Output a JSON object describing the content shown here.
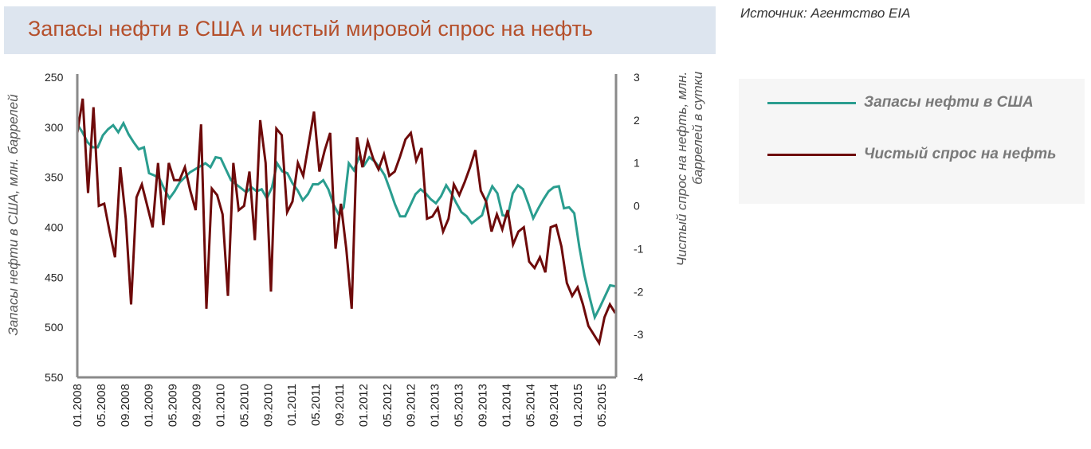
{
  "title": "Запасы нефти в США и чистый мировой спрос на нефть",
  "source": "Источник: Агентство EIA",
  "legend": [
    {
      "label": "Запасы нефти в США",
      "color": "#2a9d8f"
    },
    {
      "label": "Чистый спрос на нефть",
      "color": "#6e0a0a"
    }
  ],
  "axes": {
    "left_label": "Запасы нефти в США, млн. баррелей",
    "right_label_line1": "Чистый спрос на нефть, млн.",
    "right_label_line2": "баррелей в сутки",
    "left_ticks": [
      "250",
      "300",
      "350",
      "400",
      "450",
      "500",
      "550"
    ],
    "right_ticks": [
      "3",
      "2",
      "1",
      "0",
      "-1",
      "-2",
      "-3",
      "-4"
    ],
    "x_ticks": [
      "01.2008",
      "05.2008",
      "09.2008",
      "01.2009",
      "05.2009",
      "09.2009",
      "01.2010",
      "05.2010",
      "09.2010",
      "01.2011",
      "05.2011",
      "09.2011",
      "01.2012",
      "05.2012",
      "09.2012",
      "01.2013",
      "05.2013",
      "09.2013",
      "01.2014",
      "05.2014",
      "09.2014",
      "01.2015",
      "05.2015"
    ]
  },
  "chart_data": {
    "type": "line",
    "title": "Запасы нефти в США и чистый мировой спрос на нефть",
    "xlabel": "",
    "ylabel": "Запасы нефти в США, млн. баррелей",
    "y2label": "Чистый спрос на нефть, млн. баррелей в сутки",
    "x_start": "01.2008",
    "x_frequency": "monthly",
    "categories": [
      "01.2008",
      "05.2008",
      "09.2008",
      "01.2009",
      "05.2009",
      "09.2009",
      "01.2010",
      "05.2010",
      "09.2010",
      "01.2011",
      "05.2011",
      "09.2011",
      "01.2012",
      "05.2012",
      "09.2012",
      "01.2013",
      "05.2013",
      "09.2013",
      "01.2014",
      "05.2014",
      "09.2014",
      "01.2015",
      "05.2015"
    ],
    "ylim": [
      550,
      250
    ],
    "y_inverted": true,
    "y2lim": [
      -4,
      3
    ],
    "grid": false,
    "legend_position": "right",
    "series": [
      {
        "name": "Запасы нефти в США",
        "axis": "left",
        "color": "#2a9d8f",
        "values": [
          297,
          305,
          315,
          320,
          320,
          308,
          302,
          298,
          305,
          296,
          307,
          315,
          322,
          320,
          346,
          348,
          351,
          362,
          371,
          364,
          355,
          350,
          345,
          342,
          339,
          336,
          340,
          330,
          331,
          342,
          353,
          357,
          361,
          365,
          360,
          364,
          362,
          371,
          360,
          336,
          344,
          346,
          356,
          363,
          373,
          367,
          357,
          357,
          353,
          362,
          377,
          387,
          380,
          336,
          343,
          330,
          338,
          330,
          334,
          340,
          348,
          362,
          377,
          389,
          389,
          378,
          367,
          362,
          366,
          372,
          376,
          369,
          358,
          366,
          376,
          385,
          389,
          396,
          392,
          388,
          371,
          359,
          366,
          388,
          389,
          366,
          358,
          362,
          376,
          391,
          381,
          372,
          364,
          360,
          359,
          381,
          380,
          386,
          420,
          448,
          470,
          490,
          480,
          469,
          458,
          459
        ]
      },
      {
        "name": "Чистый спрос на нефть",
        "axis": "right",
        "color": "#6e0a0a",
        "values": [
          1.7,
          2.5,
          0.3,
          2.3,
          0.0,
          0.05,
          -0.6,
          -1.2,
          0.9,
          -0.3,
          -2.3,
          0.2,
          0.5,
          0.0,
          -0.5,
          1.0,
          -0.45,
          1.0,
          0.6,
          0.6,
          0.9,
          0.35,
          -0.1,
          1.9,
          -2.4,
          0.4,
          0.25,
          -0.2,
          -2.1,
          1.0,
          -0.1,
          0.0,
          0.8,
          -0.8,
          2.0,
          1.0,
          -2.0,
          1.8,
          1.65,
          -0.15,
          0.1,
          1.0,
          0.7,
          1.45,
          2.2,
          0.8,
          1.3,
          1.7,
          -1.0,
          0.05,
          -1.0,
          -2.4,
          1.6,
          0.9,
          1.5,
          1.1,
          0.85,
          1.2,
          0.7,
          0.8,
          1.15,
          1.55,
          1.7,
          1.05,
          1.35,
          -0.3,
          -0.25,
          -0.05,
          -0.6,
          -0.3,
          0.5,
          0.25,
          0.55,
          0.9,
          1.3,
          0.35,
          0.1,
          -0.6,
          -0.2,
          -0.55,
          -0.1,
          -0.9,
          -0.6,
          -0.5,
          -1.3,
          -1.45,
          -1.2,
          -1.55,
          -0.5,
          -0.45,
          -0.95,
          -1.8,
          -2.1,
          -1.9,
          -2.3,
          -2.8,
          -3.0,
          -3.2,
          -2.6,
          -2.3,
          -2.5
        ]
      }
    ]
  }
}
